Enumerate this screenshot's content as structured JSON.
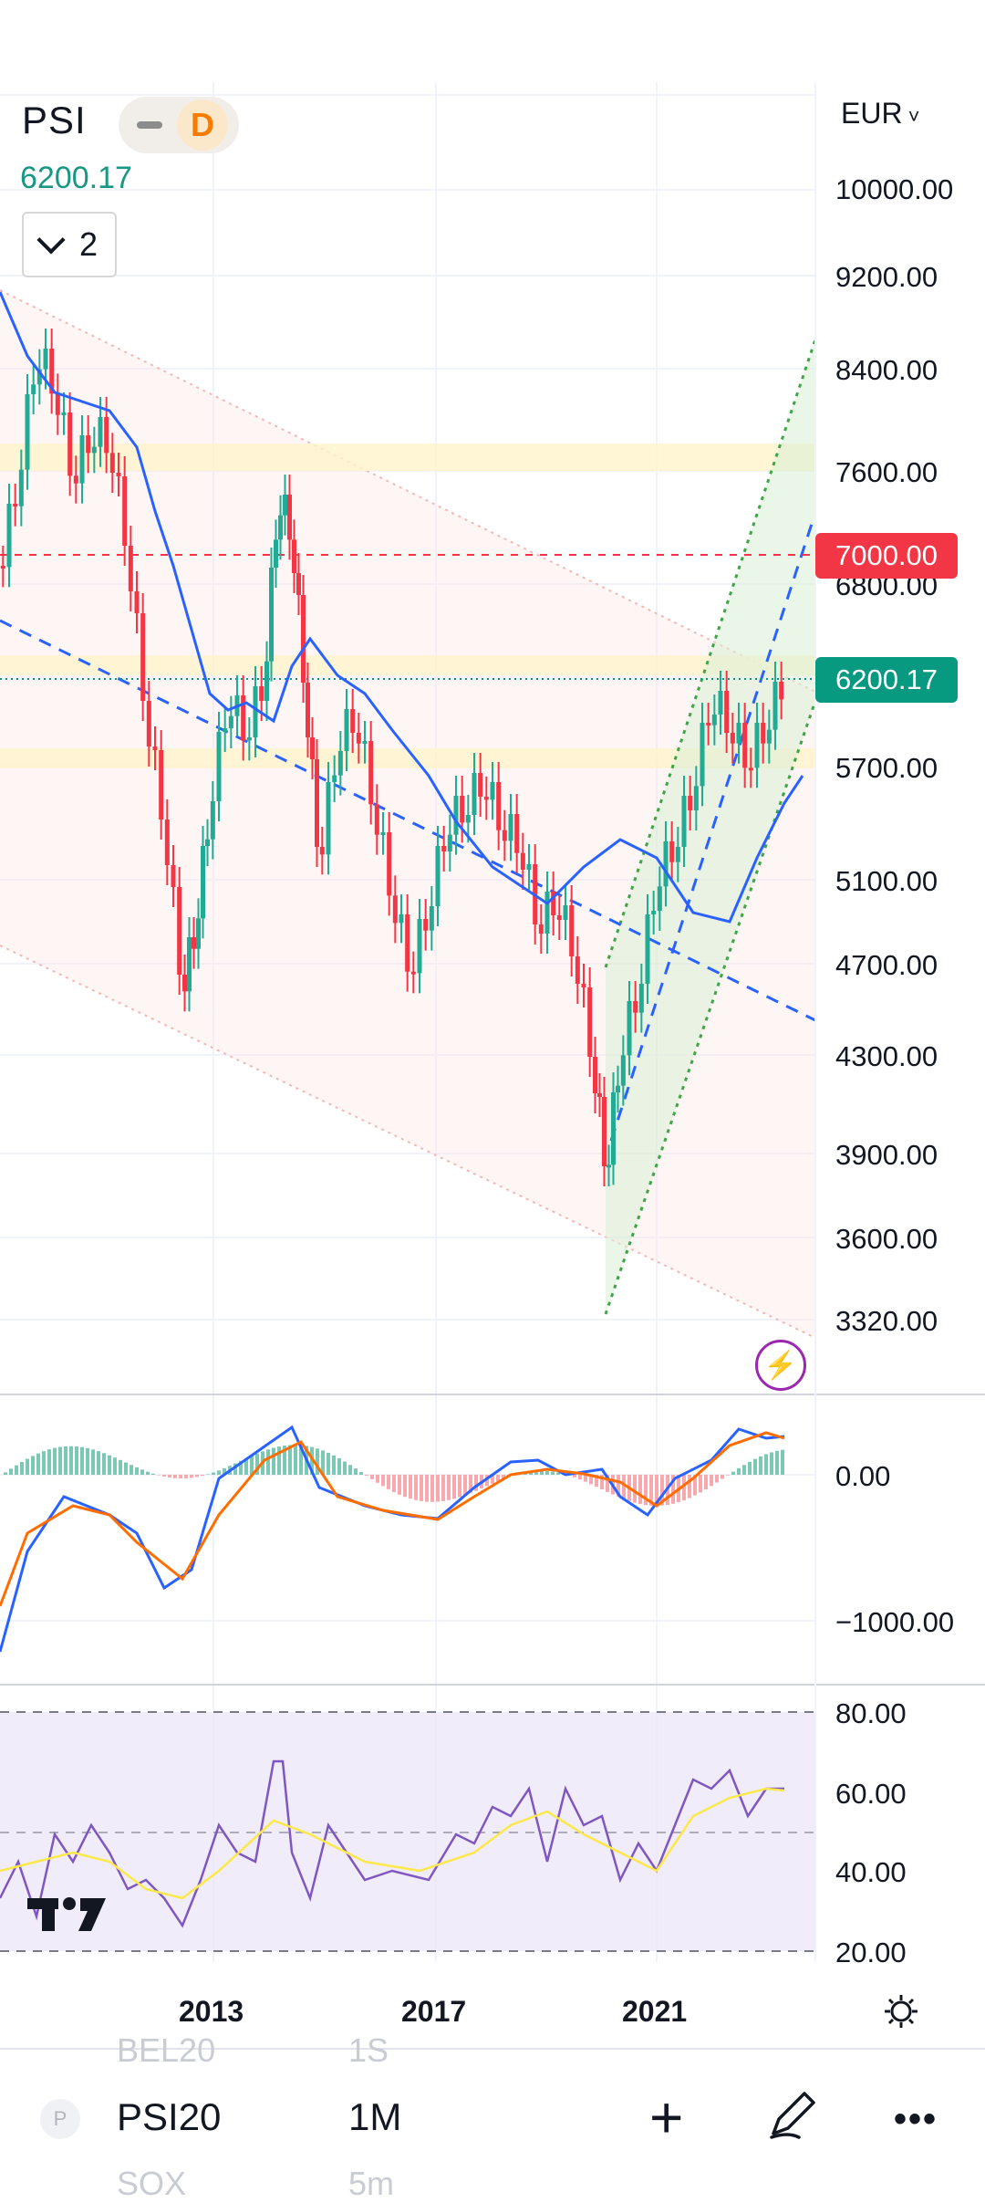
{
  "header": {
    "symbol": "PSI",
    "interval_badge": "D",
    "last_price": "6200.17",
    "indicators_collapsed_count": "2",
    "currency": "EUR"
  },
  "price_axis": [
    "10000.00",
    "9200.00",
    "8400.00",
    "7600.00",
    "6800.00",
    "5700.00",
    "5100.00",
    "4700.00",
    "4300.00",
    "3900.00",
    "3600.00",
    "3320.00"
  ],
  "price_tags": [
    {
      "label": "7000.00",
      "color": "#f23645"
    },
    {
      "label": "6200.17",
      "color": "#089981"
    }
  ],
  "macd_axis": [
    "0.00",
    "−1000.00"
  ],
  "rsi_axis": [
    "80.00",
    "60.00",
    "40.00",
    "20.00"
  ],
  "time_axis": [
    "2013",
    "2017",
    "2021"
  ],
  "bottom_bar": {
    "symbol": "PSI20",
    "timeframe": "1M",
    "ghost_top_symbol": "BEL20",
    "ghost_top_tf": "1S",
    "ghost_bottom_symbol": "SOX",
    "ghost_bottom_tf": "5m",
    "exchange_badge": "P"
  },
  "colors": {
    "up": "#22ab94",
    "down": "#f23645",
    "ma": "#2962ff",
    "macd_signal": "#ff6d00",
    "rsi": "#7e57c2",
    "rsi_ma": "#fbe94b"
  },
  "icons": [
    "chevron-down-icon",
    "lightning-icon",
    "tradingview-logo",
    "gear-icon",
    "plus-icon",
    "pen-icon",
    "more-icon"
  ]
}
